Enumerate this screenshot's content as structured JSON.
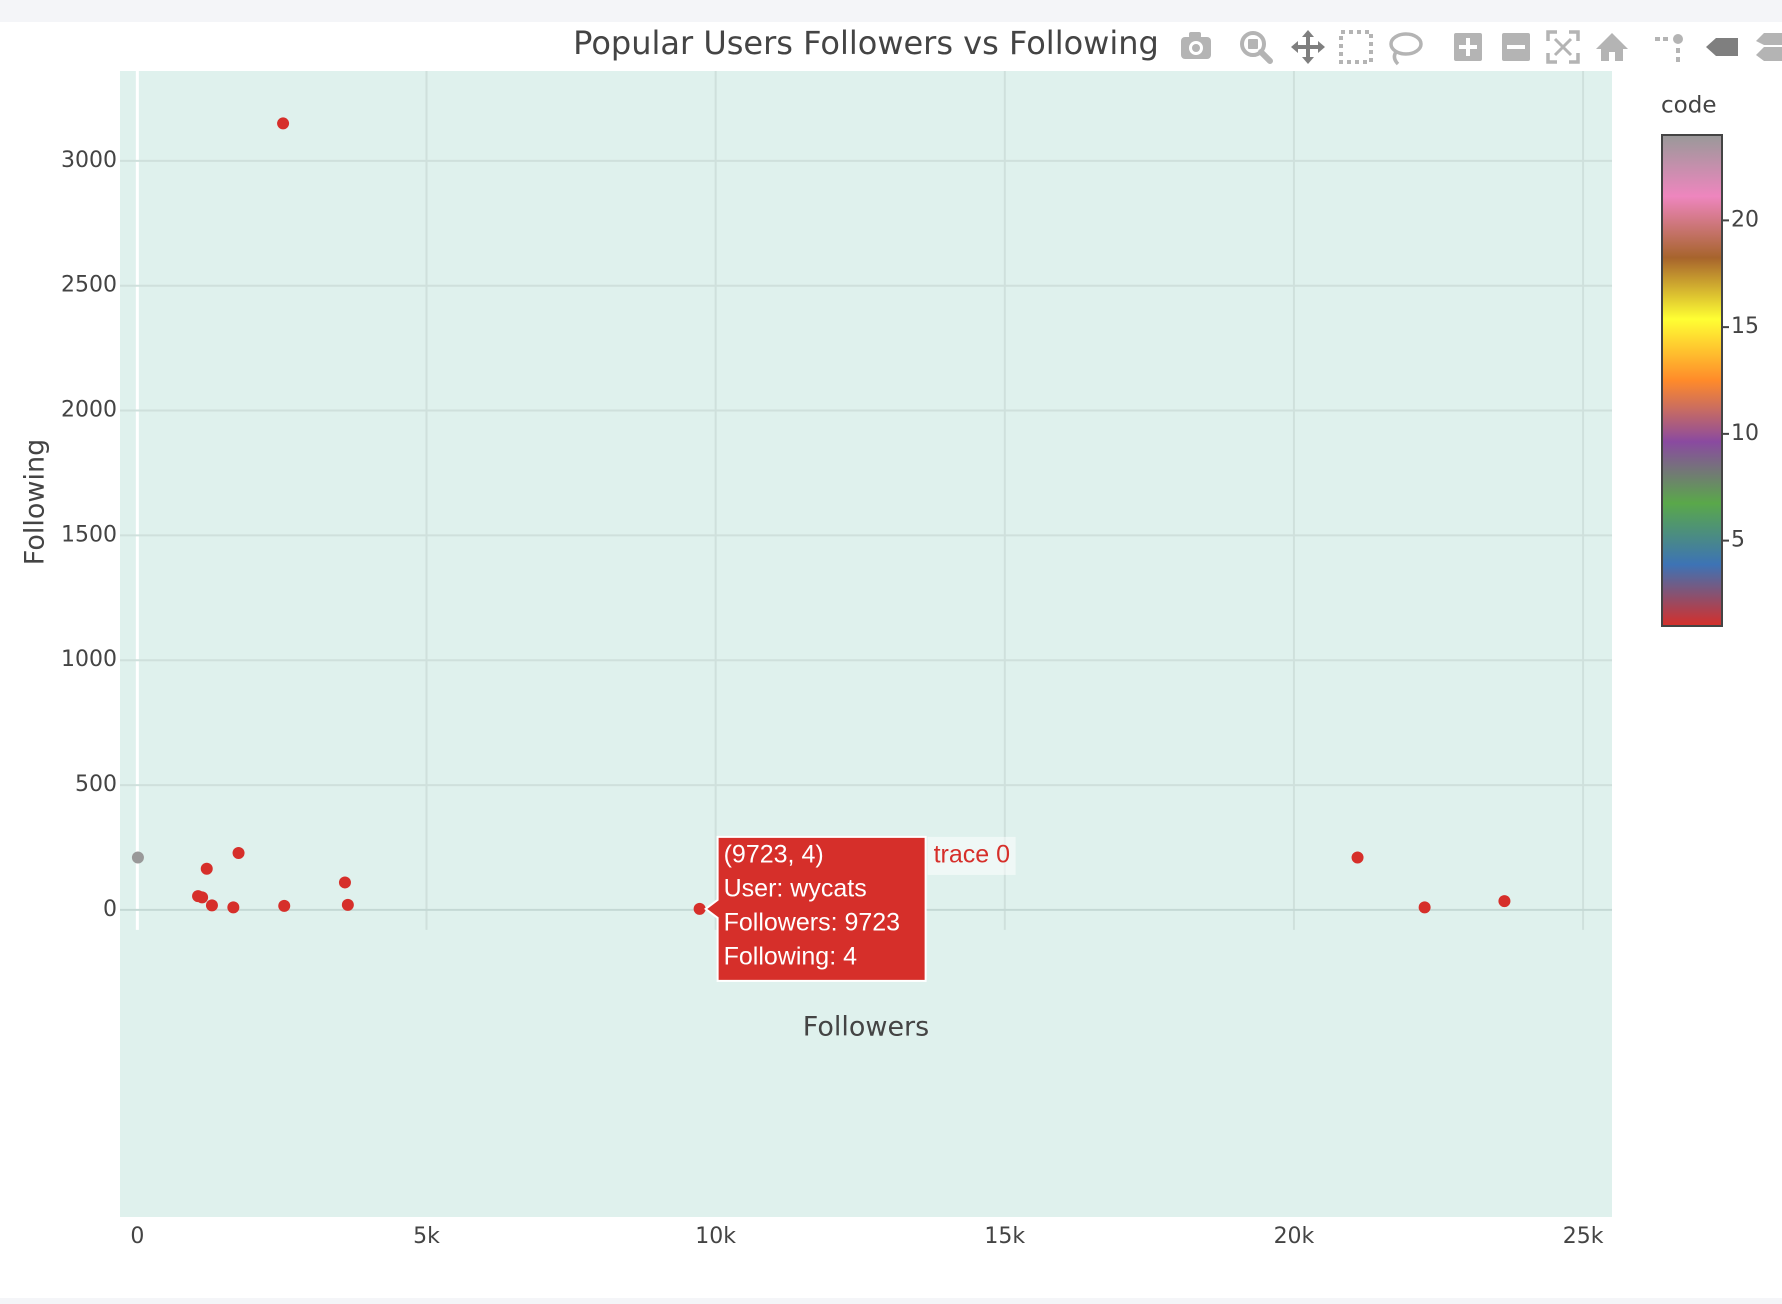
{
  "chart_data": {
    "type": "scatter",
    "title": "Popular Users Followers vs Following",
    "xlabel": "Followers",
    "ylabel": "Following",
    "xlim": [
      -300,
      25500
    ],
    "ylim": [
      -1230,
      3360
    ],
    "x_ticks": [
      0,
      5000,
      10000,
      15000,
      20000,
      25000
    ],
    "x_tick_labels": [
      "0",
      "5k",
      "10k",
      "15k",
      "20k",
      "25k"
    ],
    "y_ticks": [
      0,
      500,
      1000,
      1500,
      2000,
      2500,
      3000
    ],
    "y_tick_labels": [
      "0",
      "500",
      "1000",
      "1500",
      "2000",
      "2500",
      "3000"
    ],
    "grid": true,
    "plot_background": "#dff1ed",
    "series": [
      {
        "name": "trace 0",
        "points": [
          {
            "x": 10,
            "y": 210,
            "code": 24
          },
          {
            "x": 2520,
            "y": 3150,
            "code": 1
          },
          {
            "x": 1750,
            "y": 228,
            "code": 1
          },
          {
            "x": 1200,
            "y": 165,
            "code": 1
          },
          {
            "x": 3590,
            "y": 110,
            "code": 1
          },
          {
            "x": 1050,
            "y": 55,
            "code": 1
          },
          {
            "x": 1120,
            "y": 50,
            "code": 1
          },
          {
            "x": 1290,
            "y": 18,
            "code": 1
          },
          {
            "x": 1660,
            "y": 10,
            "code": 1
          },
          {
            "x": 2540,
            "y": 16,
            "code": 1
          },
          {
            "x": 3640,
            "y": 20,
            "code": 1
          },
          {
            "x": 9723,
            "y": 4,
            "code": 1
          },
          {
            "x": 21100,
            "y": 210,
            "code": 1
          },
          {
            "x": 22260,
            "y": 10,
            "code": 1
          },
          {
            "x": 23640,
            "y": 35,
            "code": 1
          }
        ]
      }
    ],
    "colorbar": {
      "title": "code",
      "range": [
        1,
        24
      ],
      "ticks": [
        5,
        10,
        15,
        20
      ],
      "tick_labels": [
        "5",
        "10",
        "15",
        "20"
      ],
      "colorscale": [
        "#d62f2a",
        "#3d73b5",
        "#5aa84a",
        "#8a4aa0",
        "#ff8a2a",
        "#ffff33",
        "#a7642c",
        "#ee86be",
        "#999999"
      ]
    },
    "marker_color": "#d62f2a",
    "hover": {
      "header": "(9723, 4)",
      "lines": [
        "User:  wycats",
        "Followers:  9723",
        "Following: 4"
      ],
      "trace": "trace 0",
      "point_index": 11
    }
  },
  "modebar": {
    "icons": [
      "camera-icon",
      "zoom-icon",
      "pan-icon",
      "box-select-icon",
      "lasso-select-icon",
      "zoom-in-icon",
      "zoom-out-icon",
      "autoscale-icon",
      "reset-axes-icon",
      "spike-lines-icon",
      "hover-closest-icon",
      "hover-compare-icon"
    ]
  }
}
